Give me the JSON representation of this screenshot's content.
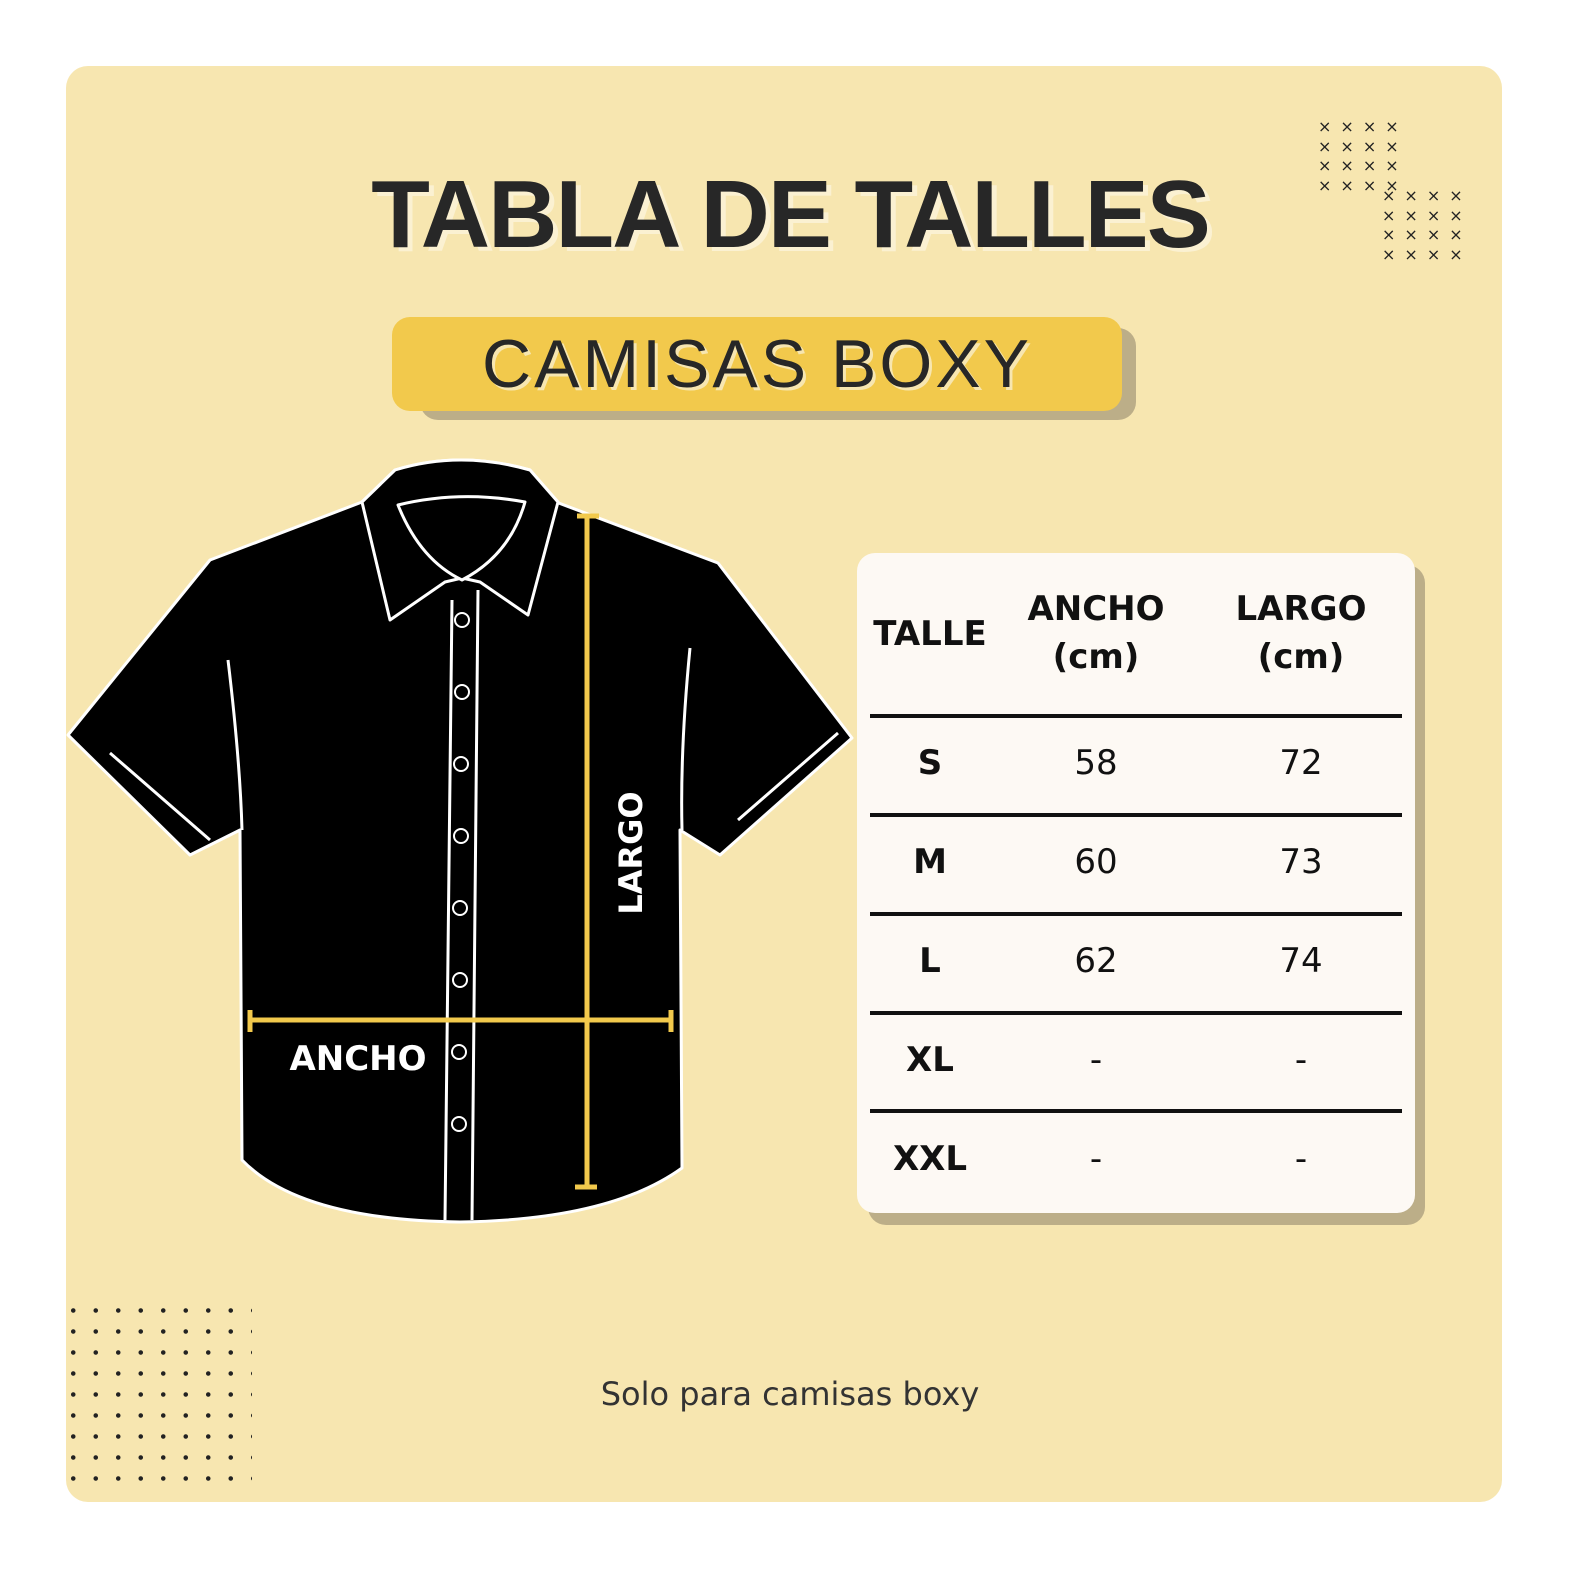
{
  "title": "TABLA DE TALLES",
  "subtitle": "CAMISAS BOXY",
  "diagram": {
    "width_label": "ANCHO",
    "length_label": "LARGO"
  },
  "table": {
    "headers": [
      {
        "line1": "TALLE",
        "line2": ""
      },
      {
        "line1": "ANCHO",
        "line2": "(cm)"
      },
      {
        "line1": "LARGO",
        "line2": "(cm)"
      }
    ],
    "rows": [
      {
        "size": "S",
        "ancho": "58",
        "largo": "72"
      },
      {
        "size": "M",
        "ancho": "60",
        "largo": "73"
      },
      {
        "size": "L",
        "ancho": "62",
        "largo": "74"
      },
      {
        "size": "XL",
        "ancho": "-",
        "largo": "-"
      },
      {
        "size": "XXL",
        "ancho": "-",
        "largo": "-"
      }
    ]
  },
  "footer": "Solo para camisas boxy",
  "colors": {
    "background": "#f7e6b0",
    "accent": "#f2c94c",
    "shadow": "#bcae88",
    "shirt": "#000000"
  }
}
